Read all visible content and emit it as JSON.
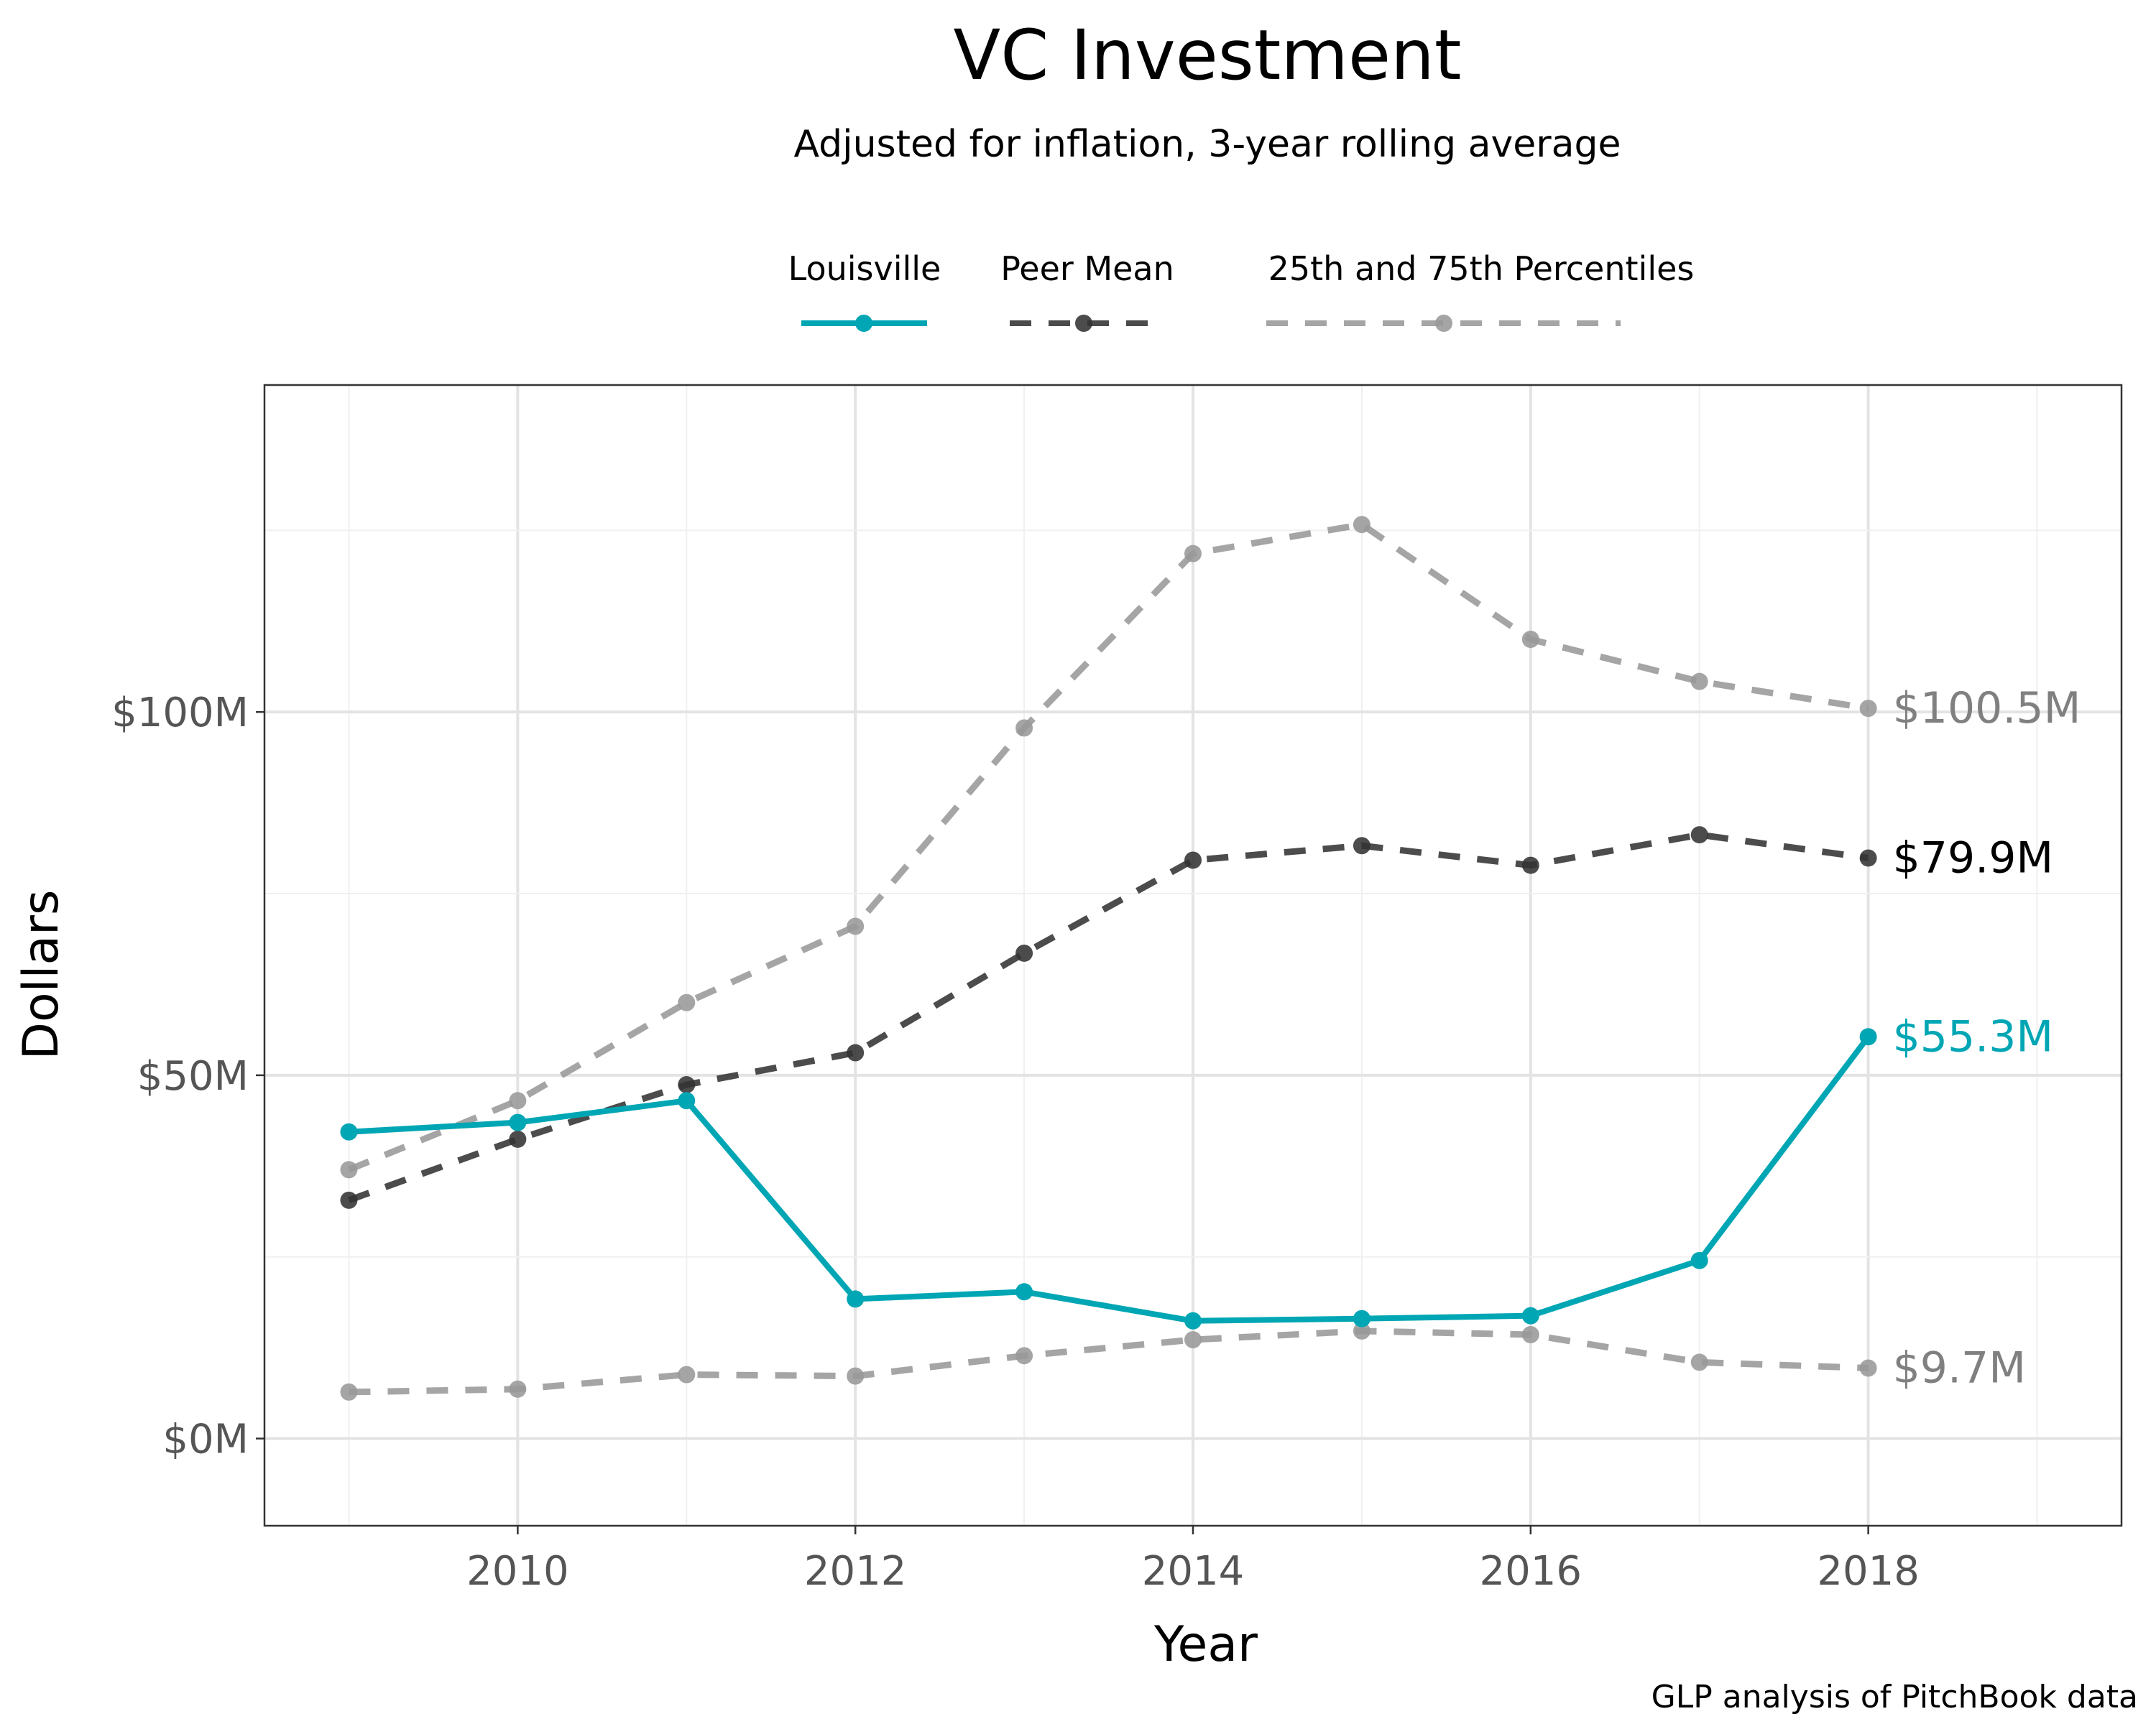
{
  "chart_data": {
    "type": "line",
    "title": "VC Investment",
    "subtitle": "Adjusted for inflation, 3-year rolling average",
    "xlabel": "Year",
    "ylabel": "Dollars",
    "caption": "GLP analysis of PitchBook data",
    "x": [
      2009,
      2010,
      2011,
      2012,
      2013,
      2014,
      2015,
      2016,
      2017,
      2018
    ],
    "xlim": [
      2008.5,
      2019.5
    ],
    "ylim": [
      -12,
      145
    ],
    "x_ticks": [
      2010,
      2012,
      2014,
      2016,
      2018
    ],
    "x_tick_labels": [
      "2010",
      "2012",
      "2014",
      "2016",
      "2018"
    ],
    "y_ticks": [
      0,
      50,
      100
    ],
    "y_tick_labels": [
      "$0M",
      "$50M",
      "$100M"
    ],
    "grid": true,
    "legend_position": "top",
    "legend": [
      {
        "label": "Louisville",
        "color": "#00a6b4",
        "dash": "solid"
      },
      {
        "label": "Peer Mean",
        "color": "#333333",
        "dash": "dashed"
      },
      {
        "label": "25th and 75th Percentiles",
        "color": "#999999",
        "dash": "dashed"
      }
    ],
    "series": [
      {
        "name": "Louisville",
        "color": "#00a6b4",
        "dash": "solid",
        "values": [
          42.2,
          43.5,
          46.5,
          19.2,
          20.2,
          16.2,
          16.5,
          16.9,
          24.5,
          55.3
        ],
        "end_label": "$55.3M"
      },
      {
        "name": "Peer Mean",
        "color": "#333333",
        "dash": "dashed",
        "values": [
          32.8,
          41.2,
          48.7,
          53.1,
          66.8,
          79.6,
          81.6,
          78.9,
          83.1,
          79.9
        ],
        "end_label": "$79.9M",
        "end_label_color": "#000000"
      },
      {
        "name": "75th Percentile",
        "color": "#999999",
        "dash": "dashed",
        "values": [
          37.0,
          46.5,
          60.0,
          70.5,
          97.8,
          121.8,
          125.8,
          110.0,
          104.2,
          100.5
        ],
        "end_label": "$100.5M",
        "end_label_color": "#808080"
      },
      {
        "name": "25th Percentile",
        "color": "#999999",
        "dash": "dashed",
        "values": [
          6.4,
          6.8,
          8.8,
          8.6,
          11.4,
          13.6,
          14.8,
          14.3,
          10.5,
          9.7
        ],
        "end_label": "$9.7M",
        "end_label_color": "#808080"
      }
    ]
  }
}
